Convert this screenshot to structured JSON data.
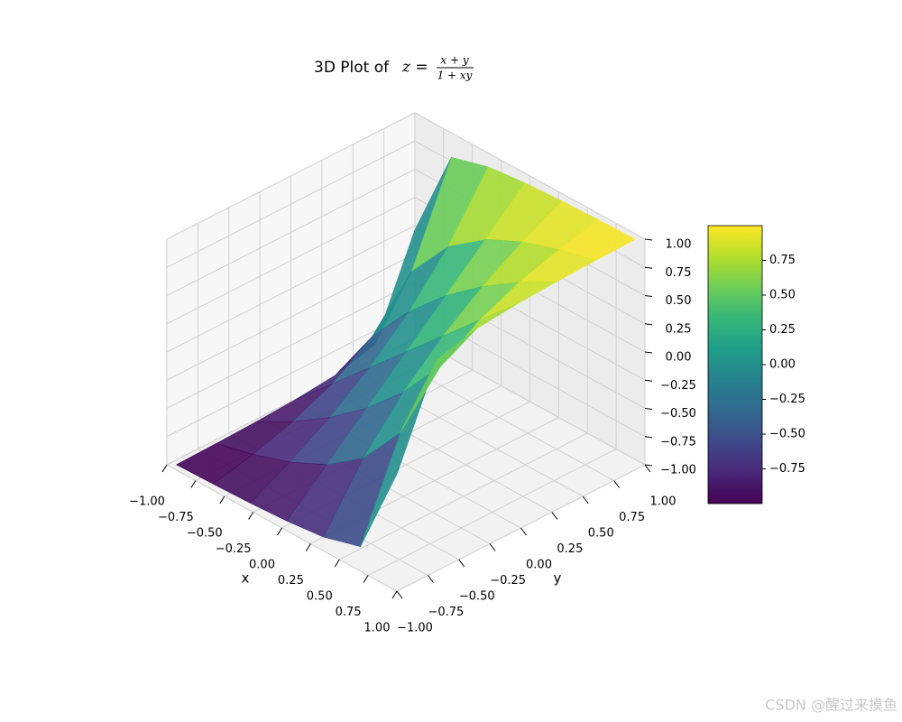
{
  "chart_data": {
    "type": "surface3d",
    "title": "3D Plot of",
    "title_math": {
      "lhs": "z =",
      "numerator": "x + y",
      "denominator": "1 + xy"
    },
    "xlabel": "x",
    "ylabel": "y",
    "x": [
      -0.96,
      -0.64,
      -0.32,
      0,
      0.32,
      0.64,
      0.96
    ],
    "y": [
      -0.96,
      -0.64,
      -0.32,
      0,
      0.32,
      0.64,
      0.96
    ],
    "z": [
      [
        -0.9992,
        -0.9911,
        -0.9792,
        -0.96,
        -0.9238,
        -0.8299,
        0
      ],
      [
        -0.9911,
        -0.9081,
        -0.7968,
        -0.64,
        -0.4024,
        0,
        0.8299
      ],
      [
        -0.9792,
        -0.7968,
        -0.5806,
        -0.32,
        0,
        0.4024,
        0.9238
      ],
      [
        -0.96,
        -0.64,
        -0.32,
        0,
        0.32,
        0.64,
        0.96
      ],
      [
        -0.9238,
        -0.4024,
        0,
        0.32,
        0.5806,
        0.7968,
        0.9792
      ],
      [
        -0.8299,
        0,
        0.4024,
        0.64,
        0.7968,
        0.9081,
        0.9911
      ],
      [
        0,
        0.8299,
        0.9238,
        0.96,
        0.9792,
        0.9911,
        0.9992
      ]
    ],
    "xlim": [
      -1,
      1
    ],
    "ylim": [
      -1,
      1
    ],
    "zlim": [
      -1,
      1
    ],
    "xticks": [
      {
        "value": -1,
        "label": "−1.00"
      },
      {
        "value": -0.75,
        "label": "−0.75"
      },
      {
        "value": -0.5,
        "label": "−0.50"
      },
      {
        "value": -0.25,
        "label": "−0.25"
      },
      {
        "value": 0,
        "label": "0.00"
      },
      {
        "value": 0.25,
        "label": "0.25"
      },
      {
        "value": 0.5,
        "label": "0.50"
      },
      {
        "value": 0.75,
        "label": "0.75"
      },
      {
        "value": 1,
        "label": "1.00"
      }
    ],
    "yticks": [
      {
        "value": -1,
        "label": "−1.00"
      },
      {
        "value": -0.75,
        "label": "−0.75"
      },
      {
        "value": -0.5,
        "label": "−0.50"
      },
      {
        "value": -0.25,
        "label": "−0.25"
      },
      {
        "value": 0,
        "label": "0.00"
      },
      {
        "value": 0.25,
        "label": "0.25"
      },
      {
        "value": 0.5,
        "label": "0.50"
      },
      {
        "value": 0.75,
        "label": "0.75"
      },
      {
        "value": 1,
        "label": "1.00"
      }
    ],
    "zticks": [
      {
        "value": -1,
        "label": "−1.00"
      },
      {
        "value": -0.75,
        "label": "−0.75"
      },
      {
        "value": -0.5,
        "label": "−0.50"
      },
      {
        "value": -0.25,
        "label": "−0.25"
      },
      {
        "value": 0,
        "label": "0.00"
      },
      {
        "value": 0.25,
        "label": "0.25"
      },
      {
        "value": 0.5,
        "label": "0.50"
      },
      {
        "value": 0.75,
        "label": "0.75"
      },
      {
        "value": 1,
        "label": "1.00"
      }
    ],
    "clim": [
      -1,
      1
    ],
    "cticks": [
      {
        "value": -0.75,
        "label": "−0.75"
      },
      {
        "value": -0.5,
        "label": "−0.50"
      },
      {
        "value": -0.25,
        "label": "−0.25"
      },
      {
        "value": 0,
        "label": "0.00"
      },
      {
        "value": 0.25,
        "label": "0.25"
      },
      {
        "value": 0.5,
        "label": "0.50"
      },
      {
        "value": 0.75,
        "label": "0.75"
      }
    ],
    "colormap": [
      "#440154",
      "#482878",
      "#3e4989",
      "#31688e",
      "#26828e",
      "#1f9e89",
      "#35b779",
      "#6ece58",
      "#b5de2b",
      "#fde725"
    ],
    "alpha": 0.9,
    "grid": true
  },
  "watermark": "CSDN @醒过来摸鱼"
}
